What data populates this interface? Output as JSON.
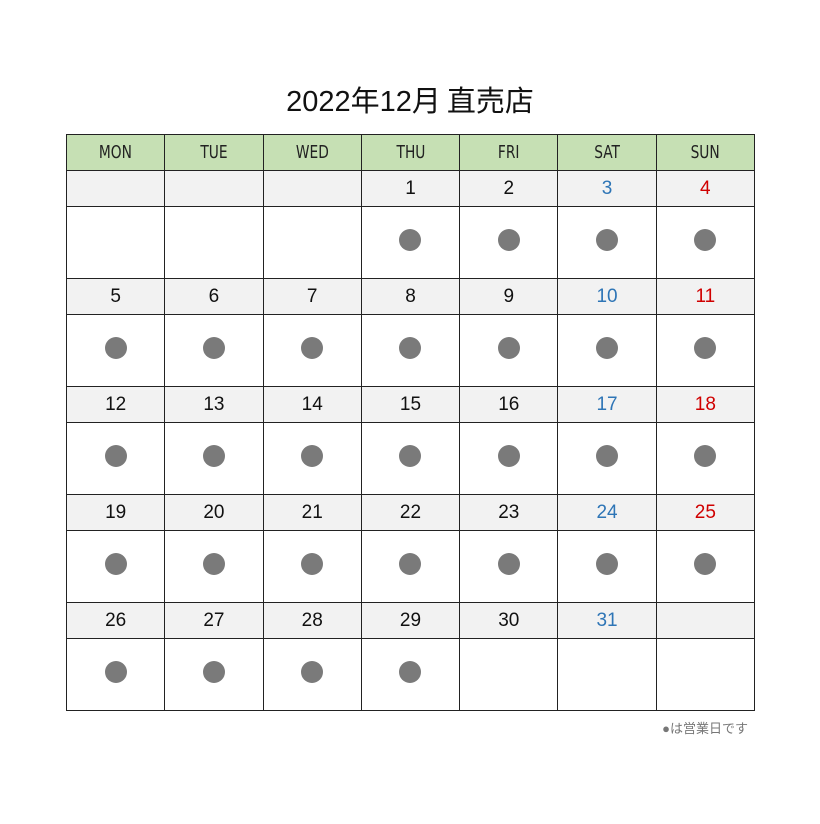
{
  "title": {
    "period": "2022年12月",
    "store": "直売店"
  },
  "weekdays": [
    "MON",
    "TUE",
    "WED",
    "THU",
    "FRI",
    "SAT",
    "SUN"
  ],
  "colors": {
    "header_bg": "#c6e0b4",
    "date_row_bg": "#f2f2f2",
    "saturday": "#2e75b6",
    "sunday": "#d00000",
    "business_dot": "#7a7a7a"
  },
  "weeks": [
    {
      "days": [
        "",
        "",
        "",
        "1",
        "2",
        "3",
        "4"
      ],
      "open": [
        false,
        false,
        false,
        true,
        true,
        true,
        true
      ]
    },
    {
      "days": [
        "5",
        "6",
        "7",
        "8",
        "9",
        "10",
        "11"
      ],
      "open": [
        true,
        true,
        true,
        true,
        true,
        true,
        true
      ]
    },
    {
      "days": [
        "12",
        "13",
        "14",
        "15",
        "16",
        "17",
        "18"
      ],
      "open": [
        true,
        true,
        true,
        true,
        true,
        true,
        true
      ]
    },
    {
      "days": [
        "19",
        "20",
        "21",
        "22",
        "23",
        "24",
        "25"
      ],
      "open": [
        true,
        true,
        true,
        true,
        true,
        true,
        true
      ]
    },
    {
      "days": [
        "26",
        "27",
        "28",
        "29",
        "30",
        "31",
        ""
      ],
      "open": [
        true,
        true,
        true,
        true,
        false,
        false,
        false
      ]
    }
  ],
  "legend_note": "●は営業日です"
}
